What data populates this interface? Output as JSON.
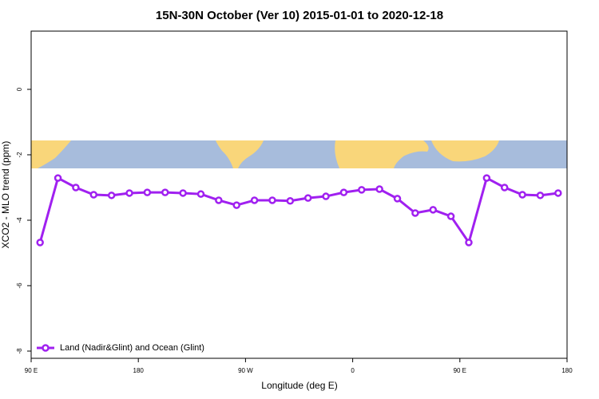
{
  "chart_data": {
    "type": "line",
    "title": "15N-30N October (Ver 10)   2015-01-01 to 2020-12-18",
    "x_label": "Longitude (deg E)",
    "y_label": "XCO2 - MLO trend (ppm)",
    "x": [
      97.5,
      112.5,
      127.5,
      142.5,
      157.5,
      172.5,
      187.5,
      202.5,
      217.5,
      232.5,
      247.5,
      262.5,
      277.5,
      292.5,
      307.5,
      322.5,
      337.5,
      352.5,
      367.5,
      382.5,
      397.5,
      412.5,
      427.5,
      442.5,
      457.5,
      472.5,
      487.5,
      502.5,
      517.5,
      532.5
    ],
    "series": [
      {
        "name": "Land (Nadir&Glint) and Ocean (Glint)",
        "color": "#a020f0",
        "values": [
          -4.68,
          -2.71,
          -3.0,
          -3.22,
          -3.24,
          -3.17,
          -3.15,
          -3.15,
          -3.17,
          -3.2,
          -3.39,
          -3.54,
          -3.39,
          -3.39,
          -3.41,
          -3.32,
          -3.27,
          -3.15,
          -3.07,
          -3.05,
          -3.34,
          -3.78,
          -3.68,
          -3.88,
          -4.68,
          -2.71,
          -3.0,
          -3.22,
          -3.24,
          -3.17
        ]
      }
    ],
    "xlim": [
      90,
      540
    ],
    "xticks": [
      {
        "value": 90,
        "label": "90 E"
      },
      180,
      {
        "value": 270,
        "label": "90 W"
      },
      {
        "value": 360,
        "label": "0"
      },
      {
        "value": 450,
        "label": "90 E"
      },
      {
        "value": 540,
        "label": "180"
      }
    ],
    "ylim": [
      -8.22,
      1.78
    ],
    "yticks": [
      -8,
      -6,
      -4,
      -2,
      0
    ],
    "legend": "bottom-left"
  }
}
